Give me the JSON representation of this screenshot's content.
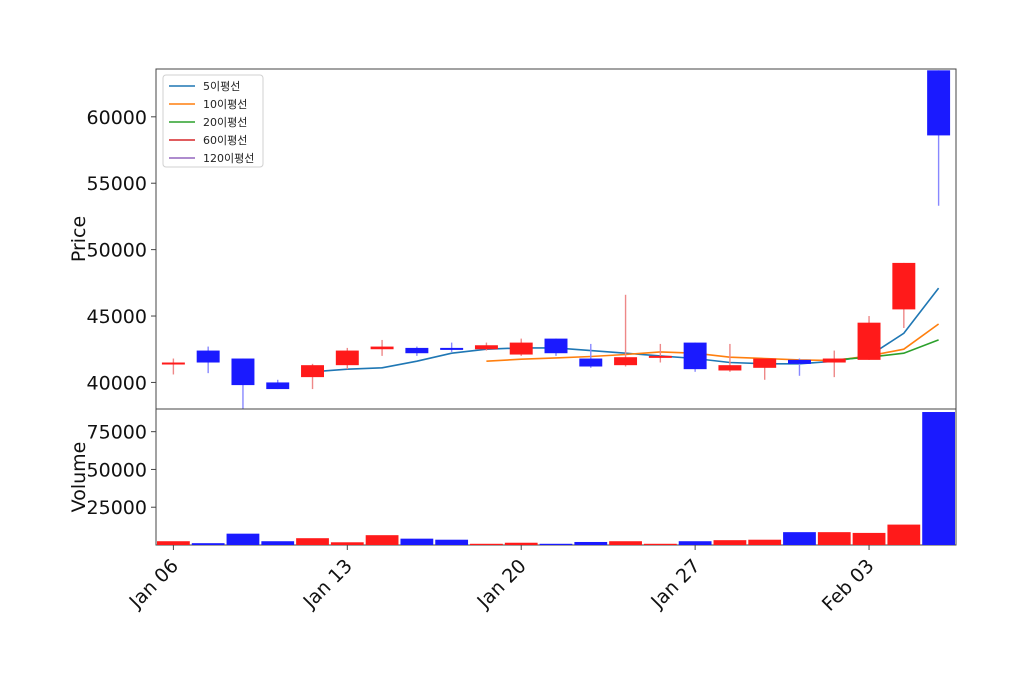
{
  "chart_data": {
    "type": "candlestick",
    "price_panel": {
      "ylabel": "Price",
      "ylim": [
        38000,
        63600
      ],
      "yticks": [
        40000,
        45000,
        50000,
        55000,
        60000
      ],
      "ytick_labels": [
        "40000",
        "45000",
        "50000",
        "55000",
        "60000"
      ],
      "up_color": "#ff1a1a",
      "down_color": "#1a1aff"
    },
    "volume_panel": {
      "ylabel": "Volume",
      "ylim": [
        0,
        90000
      ],
      "yticks": [
        25000,
        50000,
        75000
      ],
      "ytick_labels": [
        "25000",
        "50000",
        "75000"
      ]
    },
    "xtick_labels": [
      {
        "label": "Jan 06",
        "index": 0
      },
      {
        "label": "Jan 13",
        "index": 5
      },
      {
        "label": "Jan 20",
        "index": 10
      },
      {
        "label": "Jan 27",
        "index": 15
      },
      {
        "label": "Feb 03",
        "index": 20
      }
    ],
    "candles": [
      {
        "open": 41500,
        "close": 41500,
        "high": 41800,
        "low": 40600,
        "volume": 2500
      },
      {
        "open": 42400,
        "close": 41500,
        "high": 42700,
        "low": 40700,
        "volume": 1200
      },
      {
        "open": 41800,
        "close": 39800,
        "high": 41800,
        "low": 38000,
        "volume": 7500
      },
      {
        "open": 40000,
        "close": 39500,
        "high": 40200,
        "low": 39500,
        "volume": 2500
      },
      {
        "open": 40400,
        "close": 41300,
        "high": 41400,
        "low": 39500,
        "volume": 4500
      },
      {
        "open": 41300,
        "close": 42400,
        "high": 42600,
        "low": 41000,
        "volume": 1800
      },
      {
        "open": 42500,
        "close": 42700,
        "high": 43200,
        "low": 42000,
        "volume": 6500
      },
      {
        "open": 42600,
        "close": 42200,
        "high": 42700,
        "low": 42000,
        "volume": 4200
      },
      {
        "open": 42600,
        "close": 42500,
        "high": 43000,
        "low": 42300,
        "volume": 3500
      },
      {
        "open": 42500,
        "close": 42800,
        "high": 43000,
        "low": 42400,
        "volume": 800
      },
      {
        "open": 42100,
        "close": 43000,
        "high": 43300,
        "low": 42000,
        "volume": 1500
      },
      {
        "open": 43300,
        "close": 42200,
        "high": 43300,
        "low": 42000,
        "volume": 800
      },
      {
        "open": 41800,
        "close": 41200,
        "high": 42900,
        "low": 41100,
        "volume": 2000
      },
      {
        "open": 41300,
        "close": 41900,
        "high": 46600,
        "low": 41200,
        "volume": 2500
      },
      {
        "open": 42000,
        "close": 42000,
        "high": 42900,
        "low": 41500,
        "volume": 800
      },
      {
        "open": 43000,
        "close": 41000,
        "high": 43000,
        "low": 40800,
        "volume": 2500
      },
      {
        "open": 40900,
        "close": 41300,
        "high": 42900,
        "low": 40800,
        "volume": 3200
      },
      {
        "open": 41100,
        "close": 41800,
        "high": 41800,
        "low": 40200,
        "volume": 3500
      },
      {
        "open": 41700,
        "close": 41400,
        "high": 41800,
        "low": 40500,
        "volume": 8500
      },
      {
        "open": 41500,
        "close": 41800,
        "high": 42400,
        "low": 40400,
        "volume": 8500
      },
      {
        "open": 41700,
        "close": 44500,
        "high": 45000,
        "low": 41700,
        "volume": 8000
      },
      {
        "open": 45500,
        "close": 49000,
        "high": 49000,
        "low": 44100,
        "volume": 13500
      },
      {
        "open": 63500,
        "close": 58600,
        "high": 63500,
        "low": 53300,
        "volume": 88000
      }
    ],
    "series": [
      {
        "name": "5이평선",
        "color": "#1f77b4",
        "values": [
          null,
          null,
          null,
          null,
          40800,
          41000,
          41100,
          41600,
          42200,
          42500,
          42600,
          42600,
          42400,
          42200,
          42000,
          41800,
          41500,
          41400,
          41400,
          41600,
          42000,
          43700,
          47100
        ]
      },
      {
        "name": "10이평선",
        "color": "#ff7f0e",
        "values": [
          null,
          null,
          null,
          null,
          null,
          null,
          null,
          null,
          null,
          41600,
          41750,
          41850,
          41950,
          42100,
          42300,
          42200,
          41900,
          41800,
          41700,
          41650,
          42000,
          42500,
          44400
        ]
      },
      {
        "name": "20이평선",
        "color": "#2ca02c",
        "values": [
          null,
          null,
          null,
          null,
          null,
          null,
          null,
          null,
          null,
          null,
          null,
          null,
          null,
          null,
          null,
          null,
          null,
          null,
          null,
          41700,
          41900,
          42200,
          43200
        ]
      },
      {
        "name": "60이평선",
        "color": "#d62728",
        "values": []
      },
      {
        "name": "120이평선",
        "color": "#9467bd",
        "values": []
      }
    ]
  }
}
